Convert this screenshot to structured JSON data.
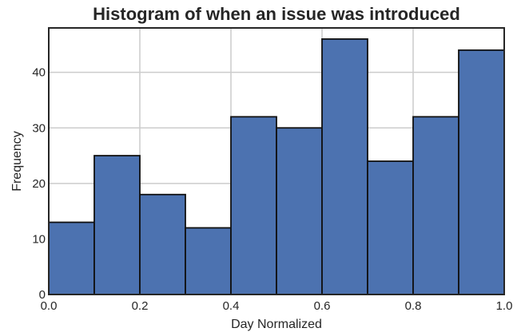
{
  "chart_data": {
    "type": "bar",
    "title": "Histogram of when an issue was introduced",
    "xlabel": "Day Normalized",
    "ylabel": "Frequency",
    "bin_edges": [
      0.0,
      0.1,
      0.2,
      0.3,
      0.4,
      0.5,
      0.6,
      0.7,
      0.8,
      0.9,
      1.0
    ],
    "values": [
      13,
      25,
      18,
      12,
      32,
      30,
      46,
      24,
      32,
      44
    ],
    "xlim": [
      0.0,
      1.0
    ],
    "ylim": [
      0,
      48
    ],
    "x_ticks": [
      0.0,
      0.2,
      0.4,
      0.6,
      0.8,
      1.0
    ],
    "x_tick_labels": [
      "0.0",
      "0.2",
      "0.4",
      "0.6",
      "0.8",
      "1.0"
    ],
    "y_ticks": [
      0,
      10,
      20,
      30,
      40
    ],
    "y_tick_labels": [
      "0",
      "10",
      "20",
      "30",
      "40"
    ],
    "grid": true,
    "legend": "none",
    "colors": {
      "bar_fill": "#4c72b0",
      "bar_edge": "#111111",
      "grid": "#cccccc",
      "frame": "#262626"
    }
  }
}
